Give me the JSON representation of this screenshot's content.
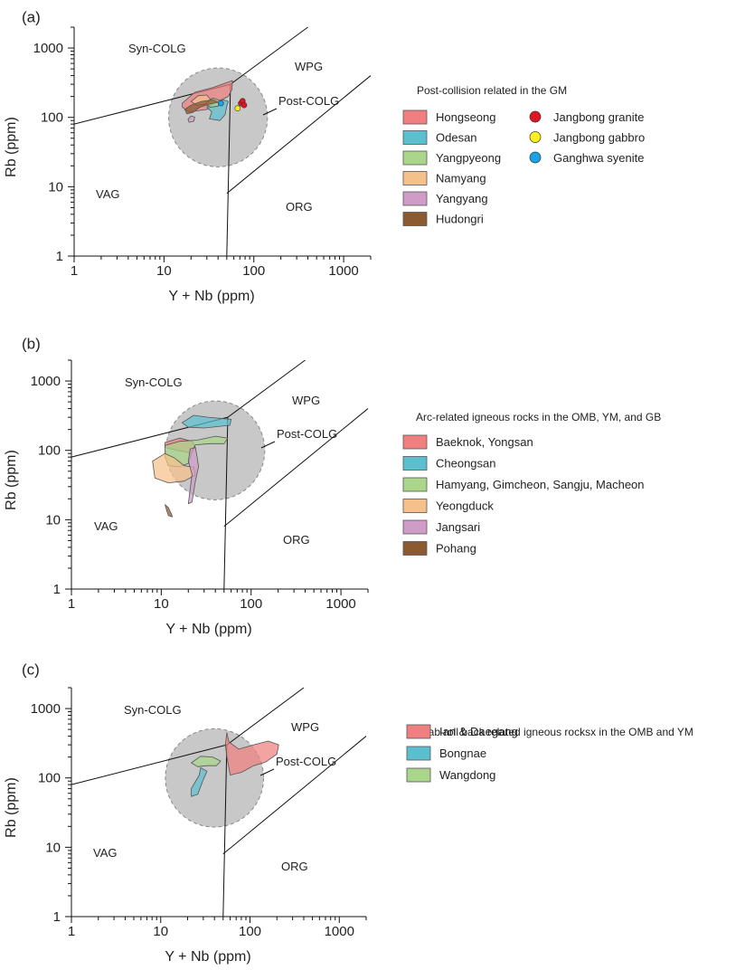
{
  "colors": {
    "hongseong": "#f08080",
    "odesan": "#5bbfcf",
    "yangpyeong": "#a9d68a",
    "namyang": "#f6c08a",
    "yangyang": "#cf9cc8",
    "hudongri": "#8b5a30",
    "jangbong_granite": "#e0151f",
    "jangbong_gabbro": "#ffef1a",
    "ganghwa_syenite": "#1aa3e8",
    "postcolg_field": "#c8c8c8"
  },
  "chart_data": [
    {
      "type": "scatter",
      "panel": "(a)",
      "xlabel": "Y + Nb (ppm)",
      "ylabel": "Rb (ppm)",
      "xscale": "log",
      "yscale": "log",
      "xlim": [
        1,
        2000
      ],
      "ylim": [
        1,
        2000
      ],
      "xticks": [
        "1",
        "10",
        "100",
        "1000"
      ],
      "yticks": [
        "1",
        "10",
        "100",
        "1000"
      ],
      "field_labels": [
        "Syn-COLG",
        "WPG",
        "Post-COLG",
        "VAG",
        "ORG"
      ],
      "boundaries": [
        {
          "name": "VAG / syn-COLG",
          "points": [
            [
              1,
              80
            ],
            [
              55,
              300
            ]
          ]
        },
        {
          "name": "VAG / ORG",
          "points": [
            [
              50,
              1
            ],
            [
              55,
              300
            ]
          ]
        },
        {
          "name": "syn-COLG / WPG",
          "points": [
            [
              55,
              300
            ],
            [
              400,
              2000
            ]
          ]
        },
        {
          "name": "WPG / ORG",
          "points": [
            [
              50,
              8
            ],
            [
              2000,
              400
            ]
          ]
        }
      ],
      "post_colg_field": {
        "center": [
          40,
          100
        ],
        "log_radius": 0.55
      },
      "legend_title": "Post-collision related in the GM",
      "series": [
        {
          "name": "Hongseong",
          "kind": "field",
          "color_key": "hongseong",
          "polygon": [
            [
              16,
              160
            ],
            [
              22,
              230
            ],
            [
              35,
              270
            ],
            [
              58,
              340
            ],
            [
              57,
              250
            ],
            [
              52,
              200
            ],
            [
              40,
              170
            ],
            [
              30,
              130
            ],
            [
              19,
              120
            ],
            [
              16,
              140
            ]
          ]
        },
        {
          "name": "Odesan",
          "kind": "field",
          "color_key": "odesan",
          "polygon": [
            [
              30,
              140
            ],
            [
              37,
              165
            ],
            [
              45,
              180
            ],
            [
              52,
              170
            ],
            [
              50,
              145
            ],
            [
              48,
              110
            ],
            [
              42,
              90
            ],
            [
              32,
              95
            ],
            [
              34,
              120
            ]
          ]
        },
        {
          "name": "Yangpyeong",
          "kind": "field",
          "color_key": "yangpyeong",
          "polygon": [
            [
              28,
              160
            ],
            [
              35,
              190
            ],
            [
              42,
              175
            ],
            [
              40,
              145
            ],
            [
              33,
              140
            ]
          ]
        },
        {
          "name": "Namyang",
          "kind": "field",
          "color_key": "namyang",
          "polygon": [
            [
              20,
              170
            ],
            [
              24,
              205
            ],
            [
              30,
              210
            ],
            [
              33,
              180
            ],
            [
              29,
              155
            ],
            [
              23,
              150
            ]
          ]
        },
        {
          "name": "Yangyang",
          "kind": "field",
          "color_key": "yangyang",
          "polygon": [
            [
              18.5,
              94
            ],
            [
              20,
              105
            ],
            [
              22,
              101
            ],
            [
              21.5,
              88
            ],
            [
              19,
              85
            ]
          ]
        },
        {
          "name": "Hudongri",
          "kind": "field",
          "color_key": "hudongri",
          "polygon": [
            [
              17,
              130
            ],
            [
              20,
              150
            ],
            [
              26,
              170
            ],
            [
              35,
              180
            ],
            [
              40,
              165
            ],
            [
              32,
              155
            ],
            [
              25,
              140
            ],
            [
              21,
              118
            ],
            [
              18,
              112
            ]
          ]
        },
        {
          "name": "Jangbong granite",
          "kind": "points",
          "color_key": "jangbong_granite",
          "points": [
            [
              72,
              160
            ],
            [
              75,
              172
            ],
            [
              78,
              150
            ]
          ]
        },
        {
          "name": "Jangbong gabbro",
          "kind": "points",
          "color_key": "jangbong_gabbro",
          "points": [
            [
              66,
              135
            ]
          ]
        },
        {
          "name": "Ganghwa syenite",
          "kind": "points",
          "color_key": "ganghwa_syenite",
          "points": [
            [
              43,
              160
            ]
          ]
        }
      ]
    },
    {
      "type": "scatter",
      "panel": "(b)",
      "xlabel": "Y + Nb (ppm)",
      "ylabel": "Rb (ppm)",
      "xscale": "log",
      "yscale": "log",
      "xlim": [
        1,
        2000
      ],
      "ylim": [
        1,
        2000
      ],
      "xticks": [
        "1",
        "10",
        "100",
        "1000"
      ],
      "yticks": [
        "1",
        "10",
        "100",
        "1000"
      ],
      "field_labels": [
        "Syn-COLG",
        "WPG",
        "Post-COLG",
        "VAG",
        "ORG"
      ],
      "legend_title": "Arc-related igneous rocks in the OMB, YM, and GB",
      "series": [
        {
          "name": "Baeknok, Yongsan",
          "kind": "field",
          "color_key": "hongseong",
          "polygon": [
            [
              11,
              130
            ],
            [
              16,
              150
            ],
            [
              22,
              135
            ],
            [
              24,
              110
            ],
            [
              21,
              92
            ],
            [
              15,
              100
            ],
            [
              11,
              110
            ]
          ]
        },
        {
          "name": "Cheongsan",
          "kind": "field",
          "color_key": "odesan",
          "polygon": [
            [
              17,
              250
            ],
            [
              23,
              320
            ],
            [
              33,
              300
            ],
            [
              45,
              290
            ],
            [
              60,
              280
            ],
            [
              58,
              230
            ],
            [
              42,
              220
            ],
            [
              30,
              210
            ],
            [
              20,
              215
            ]
          ]
        },
        {
          "name": "Hamyang, Gimcheon, Sangju, Macheon",
          "kind": "field",
          "color_key": "yangpyeong",
          "polygon": [
            [
              11,
              118
            ],
            [
              16,
              135
            ],
            [
              25,
              140
            ],
            [
              40,
              160
            ],
            [
              55,
              150
            ],
            [
              50,
              125
            ],
            [
              35,
              125
            ],
            [
              24,
              120
            ],
            [
              22,
              95
            ],
            [
              20,
              65
            ],
            [
              16,
              58
            ],
            [
              12,
              60
            ],
            [
              11,
              80
            ]
          ]
        },
        {
          "name": "Yeongduck",
          "kind": "field",
          "color_key": "namyang",
          "polygon": [
            [
              8,
              70
            ],
            [
              11,
              90
            ],
            [
              14,
              78
            ],
            [
              18,
              60
            ],
            [
              23,
              57
            ],
            [
              24,
              44
            ],
            [
              18,
              36
            ],
            [
              12,
              34
            ],
            [
              8.5,
              40
            ]
          ]
        },
        {
          "name": "Jangsari",
          "kind": "field",
          "color_key": "yangyang",
          "polygon": [
            [
              21,
              105
            ],
            [
              24,
              110
            ],
            [
              25,
              82
            ],
            [
              26,
              58
            ],
            [
              24,
              36
            ],
            [
              22,
              18
            ],
            [
              20,
              17
            ],
            [
              21,
              28
            ],
            [
              22,
              45
            ],
            [
              20,
              70
            ]
          ]
        },
        {
          "name": "Pohang",
          "kind": "field",
          "color_key": "hudongri",
          "polygon": [
            [
              11,
              16.5
            ],
            [
              12,
              15
            ],
            [
              13,
              12
            ],
            [
              13.3,
              11
            ],
            [
              12,
              11.5
            ],
            [
              11.5,
              13.5
            ]
          ]
        }
      ]
    },
    {
      "type": "scatter",
      "panel": "(c)",
      "xlabel": "Y + Nb (ppm)",
      "ylabel": "Rb (ppm)",
      "xscale": "log",
      "yscale": "log",
      "xlim": [
        1,
        2000
      ],
      "ylim": [
        1,
        2000
      ],
      "xticks": [
        "1",
        "10",
        "100",
        "1000"
      ],
      "yticks": [
        "1",
        "10",
        "100",
        "1000"
      ],
      "field_labels": [
        "Syn-COLG",
        "WPG",
        "Post-COLG",
        "VAG",
        "ORG"
      ],
      "legend_title": "Slab-roll back related igneous rocksx in the OMB and YM",
      "series": [
        {
          "name": "Ian & Daegang",
          "kind": "field",
          "color_key": "hongseong",
          "polygon": [
            [
              53,
              300
            ],
            [
              55,
              450
            ],
            [
              58,
              330
            ],
            [
              75,
              260
            ],
            [
              110,
              300
            ],
            [
              160,
              340
            ],
            [
              210,
              300
            ],
            [
              200,
              220
            ],
            [
              150,
              170
            ],
            [
              110,
              150
            ],
            [
              80,
              120
            ],
            [
              60,
              110
            ],
            [
              55,
              200
            ]
          ]
        },
        {
          "name": "Bongnae",
          "kind": "field",
          "color_key": "odesan",
          "polygon": [
            [
              22,
              70
            ],
            [
              27,
              110
            ],
            [
              28,
              140
            ],
            [
              33,
              125
            ],
            [
              30,
              95
            ],
            [
              26,
              58
            ],
            [
              22,
              54
            ]
          ]
        },
        {
          "name": "Wangdong",
          "kind": "field",
          "color_key": "yangpyeong",
          "polygon": [
            [
              22,
              165
            ],
            [
              28,
              205
            ],
            [
              38,
              200
            ],
            [
              47,
              175
            ],
            [
              42,
              150
            ],
            [
              33,
              150
            ],
            [
              26,
              145
            ]
          ]
        }
      ]
    }
  ]
}
